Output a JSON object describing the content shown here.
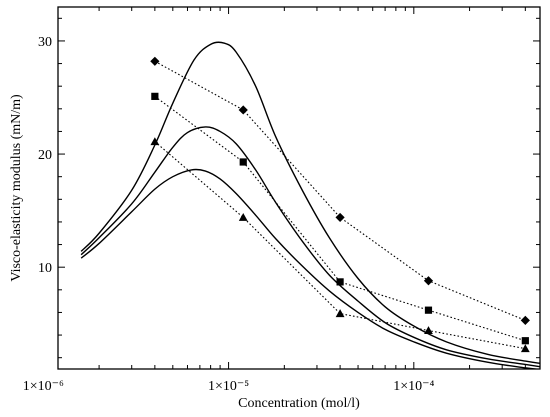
{
  "chart_data": {
    "type": "line",
    "title": "",
    "xlabel": "Concentration (mol/l)",
    "ylabel": "Visco-elasticity modulus (mN/m)",
    "x_scale": "log",
    "xlim": [
      1.2e-06,
      0.00048
    ],
    "ylim": [
      1.0,
      33.0
    ],
    "grid": false,
    "legend": "none",
    "x_ticks": [
      {
        "value": 1e-06,
        "label": "1×10⁻⁶"
      },
      {
        "value": 1e-05,
        "label": "1×10⁻⁵"
      },
      {
        "value": 0.0001,
        "label": "1×10⁻⁴"
      }
    ],
    "y_ticks": [
      {
        "value": 10,
        "label": "10"
      },
      {
        "value": 20,
        "label": "20"
      },
      {
        "value": 30,
        "label": "30"
      }
    ],
    "series": [
      {
        "marker": "diamond",
        "style": "dotted",
        "x": [
          4e-06,
          1.2e-05,
          4e-05,
          0.00012,
          0.0004
        ],
        "y": [
          28.2,
          23.9,
          14.4,
          8.8,
          5.3
        ]
      },
      {
        "marker": "square",
        "style": "dotted",
        "x": [
          4e-06,
          1.2e-05,
          4e-05,
          0.00012,
          0.0004
        ],
        "y": [
          25.1,
          19.3,
          8.7,
          6.2,
          3.5
        ]
      },
      {
        "marker": "triangle",
        "style": "dotted",
        "x": [
          4e-06,
          1.2e-05,
          4e-05,
          0.00012,
          0.0004
        ],
        "y": [
          21.1,
          14.4,
          5.9,
          4.4,
          2.8
        ]
      },
      {
        "marker": "none",
        "style": "solid",
        "x": [
          1.6e-06,
          2e-06,
          3e-06,
          4e-06,
          5e-06,
          6.5e-06,
          8e-06,
          9.5e-06,
          1.1e-05,
          1.4e-05,
          1.8e-05,
          2.5e-05,
          3.5e-05,
          5e-05,
          7e-05,
          0.0001,
          0.00015,
          0.00025,
          0.0004,
          0.00048
        ],
        "y": [
          11.4,
          13.0,
          16.8,
          20.8,
          24.5,
          28.3,
          29.7,
          29.8,
          29.0,
          26.0,
          21.5,
          16.8,
          12.6,
          9.0,
          6.5,
          4.8,
          3.4,
          2.3,
          1.7,
          1.5
        ]
      },
      {
        "marker": "none",
        "style": "solid",
        "x": [
          1.6e-06,
          2e-06,
          3e-06,
          4e-06,
          5e-06,
          6e-06,
          7.5e-06,
          9e-06,
          1.1e-05,
          1.4e-05,
          1.8e-05,
          2.5e-05,
          3.5e-05,
          5e-05,
          7e-05,
          0.0001,
          0.00015,
          0.00025,
          0.0004,
          0.00048
        ],
        "y": [
          11.1,
          12.6,
          15.6,
          18.4,
          20.6,
          21.9,
          22.4,
          22.0,
          20.9,
          18.6,
          15.7,
          12.3,
          9.3,
          7.0,
          5.1,
          3.8,
          2.7,
          1.9,
          1.4,
          1.2
        ]
      },
      {
        "marker": "none",
        "style": "solid",
        "x": [
          1.6e-06,
          2e-06,
          3e-06,
          4e-06,
          5e-06,
          6.3e-06,
          7.5e-06,
          9e-06,
          1.1e-05,
          1.4e-05,
          1.8e-05,
          2.5e-05,
          3.5e-05,
          5e-05,
          7e-05,
          0.0001,
          0.00015,
          0.00025,
          0.0004,
          0.00048
        ],
        "y": [
          10.8,
          12.1,
          14.9,
          16.9,
          18.0,
          18.6,
          18.5,
          17.8,
          16.5,
          14.6,
          12.5,
          10.1,
          7.9,
          6.0,
          4.5,
          3.4,
          2.4,
          1.6,
          1.1,
          0.95
        ]
      }
    ]
  }
}
